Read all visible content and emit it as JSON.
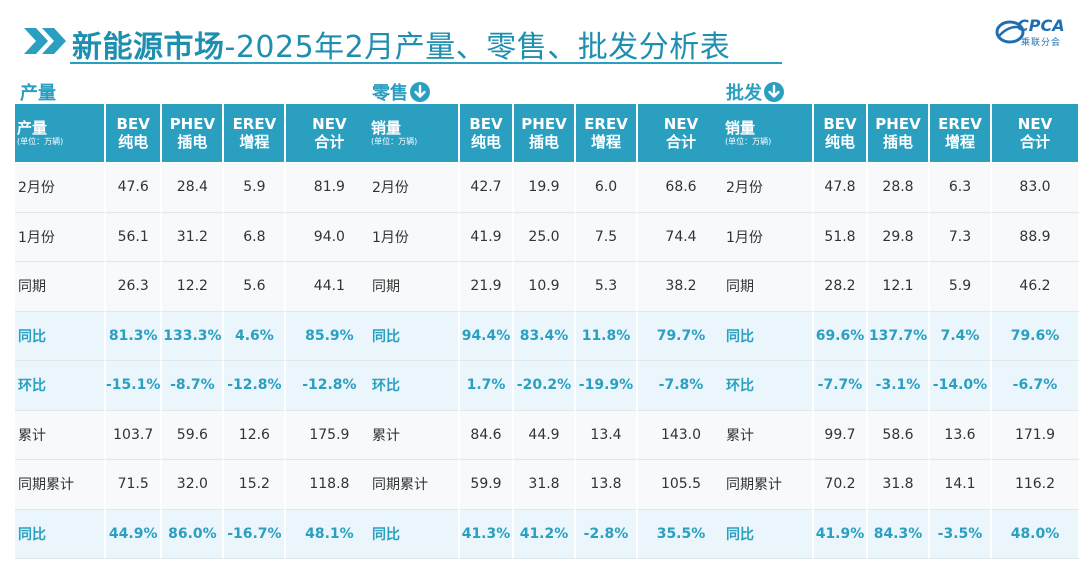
{
  "header": {
    "title_bold": "新能源市场",
    "title_rest": "-2025年2月产量、零售、批发分析表",
    "logo_text": "CPCA",
    "logo_sub": "乘联分会"
  },
  "watermark": "CPCA 乘联分会",
  "colors": {
    "accent": "#2a9fc0",
    "header_bg": "#2a9fc0",
    "highlight_bg": "#eaf6fb",
    "text": "#333333"
  },
  "columns": [
    "BEV\n纯电",
    "PHEV\n插电",
    "EREV\n增程",
    "NEV\n合计"
  ],
  "sections": [
    {
      "title": "产量",
      "has_icon": false,
      "header_main": "产量",
      "header_sub": "(单位：万辆)",
      "col_labels": [
        [
          "BEV",
          "纯电"
        ],
        [
          "PHEV",
          "插电"
        ],
        [
          "EREV",
          "增程"
        ],
        [
          "NEV",
          "合计"
        ]
      ],
      "rows": [
        {
          "label": "2月份",
          "values": [
            "47.6",
            "28.4",
            "5.9",
            "81.9"
          ],
          "highlight": false
        },
        {
          "label": "1月份",
          "values": [
            "56.1",
            "31.2",
            "6.8",
            "94.0"
          ],
          "highlight": false
        },
        {
          "label": "同期",
          "values": [
            "26.3",
            "12.2",
            "5.6",
            "44.1"
          ],
          "highlight": false
        },
        {
          "label": "同比",
          "values": [
            "81.3%",
            "133.3%",
            "4.6%",
            "85.9%"
          ],
          "highlight": true
        },
        {
          "label": "环比",
          "values": [
            "-15.1%",
            "-8.7%",
            "-12.8%",
            "-12.8%"
          ],
          "highlight": true
        },
        {
          "label": "累计",
          "values": [
            "103.7",
            "59.6",
            "12.6",
            "175.9"
          ],
          "highlight": false
        },
        {
          "label": "同期累计",
          "values": [
            "71.5",
            "32.0",
            "15.2",
            "118.8"
          ],
          "highlight": false
        },
        {
          "label": "同比",
          "values": [
            "44.9%",
            "86.0%",
            "-16.7%",
            "48.1%"
          ],
          "highlight": true
        }
      ]
    },
    {
      "title": "零售",
      "has_icon": true,
      "header_main": "销量",
      "header_sub": "(单位：万辆)",
      "col_labels": [
        [
          "BEV",
          "纯电"
        ],
        [
          "PHEV",
          "插电"
        ],
        [
          "EREV",
          "增程"
        ],
        [
          "NEV",
          "合计"
        ]
      ],
      "rows": [
        {
          "label": "2月份",
          "values": [
            "42.7",
            "19.9",
            "6.0",
            "68.6"
          ],
          "highlight": false
        },
        {
          "label": "1月份",
          "values": [
            "41.9",
            "25.0",
            "7.5",
            "74.4"
          ],
          "highlight": false
        },
        {
          "label": "同期",
          "values": [
            "21.9",
            "10.9",
            "5.3",
            "38.2"
          ],
          "highlight": false
        },
        {
          "label": "同比",
          "values": [
            "94.4%",
            "83.4%",
            "11.8%",
            "79.7%"
          ],
          "highlight": true
        },
        {
          "label": "环比",
          "values": [
            "1.7%",
            "-20.2%",
            "-19.9%",
            "-7.8%"
          ],
          "highlight": true
        },
        {
          "label": "累计",
          "values": [
            "84.6",
            "44.9",
            "13.4",
            "143.0"
          ],
          "highlight": false
        },
        {
          "label": "同期累计",
          "values": [
            "59.9",
            "31.8",
            "13.8",
            "105.5"
          ],
          "highlight": false
        },
        {
          "label": "同比",
          "values": [
            "41.3%",
            "41.2%",
            "-2.8%",
            "35.5%"
          ],
          "highlight": true
        }
      ]
    },
    {
      "title": "批发",
      "has_icon": true,
      "header_main": "销量",
      "header_sub": "(单位：万辆)",
      "col_labels": [
        [
          "BEV",
          "纯电"
        ],
        [
          "PHEV",
          "插电"
        ],
        [
          "EREV",
          "增程"
        ],
        [
          "NEV",
          "合计"
        ]
      ],
      "rows": [
        {
          "label": "2月份",
          "values": [
            "47.8",
            "28.8",
            "6.3",
            "83.0"
          ],
          "highlight": false
        },
        {
          "label": "1月份",
          "values": [
            "51.8",
            "29.8",
            "7.3",
            "88.9"
          ],
          "highlight": false
        },
        {
          "label": "同期",
          "values": [
            "28.2",
            "12.1",
            "5.9",
            "46.2"
          ],
          "highlight": false
        },
        {
          "label": "同比",
          "values": [
            "69.6%",
            "137.7%",
            "7.4%",
            "79.6%"
          ],
          "highlight": true
        },
        {
          "label": "环比",
          "values": [
            "-7.7%",
            "-3.1%",
            "-14.0%",
            "-6.7%"
          ],
          "highlight": true
        },
        {
          "label": "累计",
          "values": [
            "99.7",
            "58.6",
            "13.6",
            "171.9"
          ],
          "highlight": false
        },
        {
          "label": "同期累计",
          "values": [
            "70.2",
            "31.8",
            "14.1",
            "116.2"
          ],
          "highlight": false
        },
        {
          "label": "同比",
          "values": [
            "41.9%",
            "84.3%",
            "-3.5%",
            "48.0%"
          ],
          "highlight": true
        }
      ]
    }
  ]
}
